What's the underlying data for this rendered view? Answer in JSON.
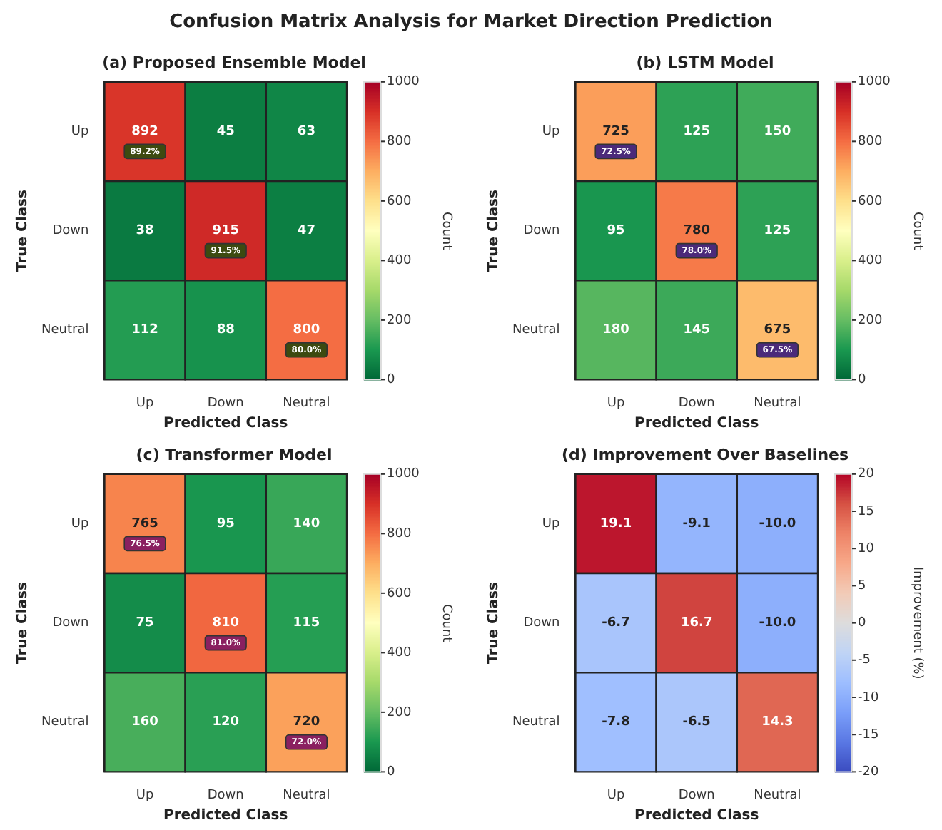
{
  "chart_data": [
    {
      "type": "heatmap",
      "title": "Confusion Matrix Analysis for Market Direction Prediction",
      "subtitle": "(a) Proposed Ensemble Model",
      "xlabel": "Predicted Class",
      "ylabel": "True Class",
      "clabel": "Count",
      "categories": [
        "Up",
        "Down",
        "Neutral"
      ],
      "y_categories": [
        "Up",
        "Down",
        "Neutral"
      ],
      "cells": [
        [
          892,
          45,
          63
        ],
        [
          38,
          915,
          47
        ],
        [
          112,
          88,
          800
        ]
      ],
      "cell_labels": [
        [
          "892\n89.2%",
          "45",
          "63"
        ],
        [
          "38",
          "915\n91.5%",
          "47"
        ],
        [
          "112",
          "88",
          "800\n80.0%"
        ]
      ],
      "clim": [
        0,
        1000
      ],
      "cticks": [
        0,
        200,
        400,
        600,
        800,
        1000
      ],
      "data_labels": true
    },
    {
      "type": "heatmap",
      "title": "(b) LSTM Model",
      "xlabel": "Predicted Class",
      "ylabel": "True Class",
      "clabel": "Count",
      "categories": [
        "Up",
        "Down",
        "Neutral"
      ],
      "y_categories": [
        "Up",
        "Down",
        "Neutral"
      ],
      "cells": [
        [
          725,
          125,
          150
        ],
        [
          95,
          780,
          125
        ],
        [
          180,
          145,
          675
        ]
      ],
      "cell_labels": [
        [
          "725\n72.5%",
          "125",
          "150"
        ],
        [
          "95",
          "780\n78.0%",
          "125"
        ],
        [
          "180",
          "145",
          "675\n67.5%"
        ]
      ],
      "clim": [
        0,
        1000
      ],
      "cticks": [
        0,
        200,
        400,
        600,
        800,
        1000
      ],
      "data_labels": true
    },
    {
      "type": "heatmap",
      "title": "(c) Transformer Model",
      "xlabel": "Predicted Class",
      "ylabel": "True Class",
      "clabel": "Count",
      "categories": [
        "Up",
        "Down",
        "Neutral"
      ],
      "y_categories": [
        "Up",
        "Down",
        "Neutral"
      ],
      "cells": [
        [
          765,
          95,
          140
        ],
        [
          75,
          810,
          115
        ],
        [
          160,
          120,
          720
        ]
      ],
      "cell_labels": [
        [
          "765\n76.5%",
          "95",
          "140"
        ],
        [
          "75",
          "810\n81.0%",
          "115"
        ],
        [
          "160",
          "120",
          "720\n72.0%"
        ]
      ],
      "clim": [
        0,
        1000
      ],
      "cticks": [
        0,
        200,
        400,
        600,
        800,
        1000
      ],
      "data_labels": true
    },
    {
      "type": "heatmap",
      "title": "(d) Improvement Over Baselines",
      "xlabel": "Predicted Class",
      "ylabel": "True Class",
      "clabel": "Improvement (%)",
      "categories": [
        "Up",
        "Down",
        "Neutral"
      ],
      "y_categories": [
        "Up",
        "Down",
        "Neutral"
      ],
      "cells": [
        [
          19.1,
          -9.1,
          -10.0
        ],
        [
          -6.7,
          16.7,
          -10.0
        ],
        [
          -7.8,
          -6.5,
          14.3
        ]
      ],
      "cell_labels": [
        [
          "19.1",
          "-9.1",
          "-10.0"
        ],
        [
          "-6.7",
          "16.7",
          "-10.0"
        ],
        [
          "-7.8",
          "-6.5",
          "14.3"
        ]
      ],
      "clim": [
        -20,
        20
      ],
      "cticks": [
        -20,
        -15,
        -10,
        -5,
        0,
        5,
        10,
        15,
        20
      ],
      "data_labels": true
    }
  ]
}
